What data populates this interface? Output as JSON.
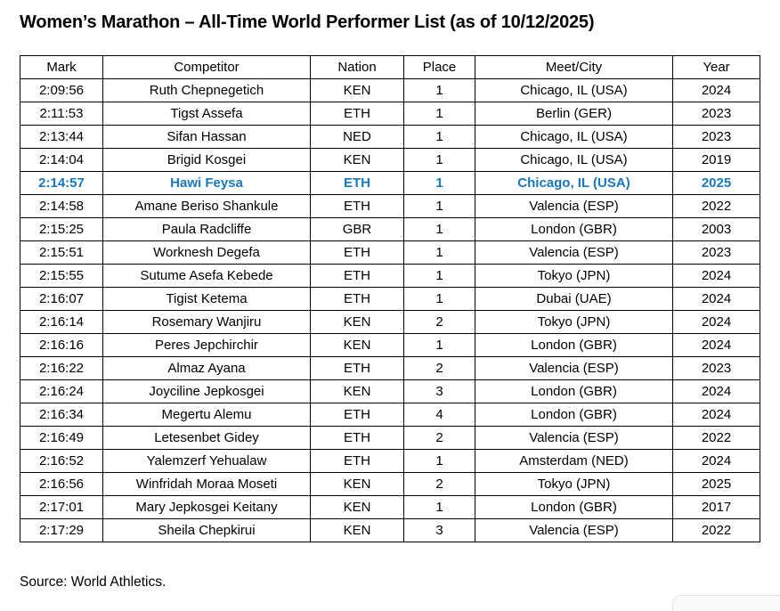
{
  "title": "Women’s Marathon – All-Time World Performer List (as of 10/12/2025)",
  "table": {
    "headers": [
      "Mark",
      "Competitor",
      "Nation",
      "Place",
      "Meet/City",
      "Year"
    ],
    "column_keys": [
      "mark",
      "competitor",
      "nation",
      "place",
      "meet_city",
      "year"
    ],
    "highlight_index": 4,
    "rows": [
      {
        "mark": "2:09:56",
        "competitor": "Ruth Chepnegetich",
        "nation": "KEN",
        "place": "1",
        "meet_city": "Chicago, IL (USA)",
        "year": "2024"
      },
      {
        "mark": "2:11:53",
        "competitor": "Tigst Assefa",
        "nation": "ETH",
        "place": "1",
        "meet_city": "Berlin (GER)",
        "year": "2023"
      },
      {
        "mark": "2:13:44",
        "competitor": "Sifan Hassan",
        "nation": "NED",
        "place": "1",
        "meet_city": "Chicago, IL (USA)",
        "year": "2023"
      },
      {
        "mark": "2:14:04",
        "competitor": "Brigid Kosgei",
        "nation": "KEN",
        "place": "1",
        "meet_city": "Chicago, IL (USA)",
        "year": "2019"
      },
      {
        "mark": "2:14:57",
        "competitor": "Hawi Feysa",
        "nation": "ETH",
        "place": "1",
        "meet_city": "Chicago, IL (USA)",
        "year": "2025"
      },
      {
        "mark": "2:14:58",
        "competitor": "Amane Beriso Shankule",
        "nation": "ETH",
        "place": "1",
        "meet_city": "Valencia (ESP)",
        "year": "2022"
      },
      {
        "mark": "2:15:25",
        "competitor": "Paula Radcliffe",
        "nation": "GBR",
        "place": "1",
        "meet_city": "London (GBR)",
        "year": "2003"
      },
      {
        "mark": "2:15:51",
        "competitor": "Worknesh Degefa",
        "nation": "ETH",
        "place": "1",
        "meet_city": "Valencia (ESP)",
        "year": "2023"
      },
      {
        "mark": "2:15:55",
        "competitor": "Sutume Asefa Kebede",
        "nation": "ETH",
        "place": "1",
        "meet_city": "Tokyo (JPN)",
        "year": "2024"
      },
      {
        "mark": "2:16:07",
        "competitor": "Tigist Ketema",
        "nation": "ETH",
        "place": "1",
        "meet_city": "Dubai (UAE)",
        "year": "2024"
      },
      {
        "mark": "2:16:14",
        "competitor": "Rosemary Wanjiru",
        "nation": "KEN",
        "place": "2",
        "meet_city": "Tokyo (JPN)",
        "year": "2024"
      },
      {
        "mark": "2:16:16",
        "competitor": "Peres Jepchirchir",
        "nation": "KEN",
        "place": "1",
        "meet_city": "London (GBR)",
        "year": "2024"
      },
      {
        "mark": "2:16:22",
        "competitor": "Almaz Ayana",
        "nation": "ETH",
        "place": "2",
        "meet_city": "Valencia (ESP)",
        "year": "2023"
      },
      {
        "mark": "2:16:24",
        "competitor": "Joyciline Jepkosgei",
        "nation": "KEN",
        "place": "3",
        "meet_city": "London (GBR)",
        "year": "2024"
      },
      {
        "mark": "2:16:34",
        "competitor": "Megertu Alemu",
        "nation": "ETH",
        "place": "4",
        "meet_city": "London (GBR)",
        "year": "2024"
      },
      {
        "mark": "2:16:49",
        "competitor": "Letesenbet Gidey",
        "nation": "ETH",
        "place": "2",
        "meet_city": "Valencia (ESP)",
        "year": "2022"
      },
      {
        "mark": "2:16:52",
        "competitor": "Yalemzerf Yehualaw",
        "nation": "ETH",
        "place": "1",
        "meet_city": "Amsterdam (NED)",
        "year": "2024"
      },
      {
        "mark": "2:16:56",
        "competitor": "Winfridah Moraa Moseti",
        "nation": "KEN",
        "place": "2",
        "meet_city": "Tokyo (JPN)",
        "year": "2025"
      },
      {
        "mark": "2:17:01",
        "competitor": "Mary Jepkosgei Keitany",
        "nation": "KEN",
        "place": "1",
        "meet_city": "London (GBR)",
        "year": "2017"
      },
      {
        "mark": "2:17:29",
        "competitor": "Sheila Chepkirui",
        "nation": "KEN",
        "place": "3",
        "meet_city": "Valencia (ESP)",
        "year": "2022"
      }
    ]
  },
  "source_note": "Source: World Athletics.",
  "colors": {
    "highlight_text": "#1778BE",
    "table_border": "#000000"
  }
}
